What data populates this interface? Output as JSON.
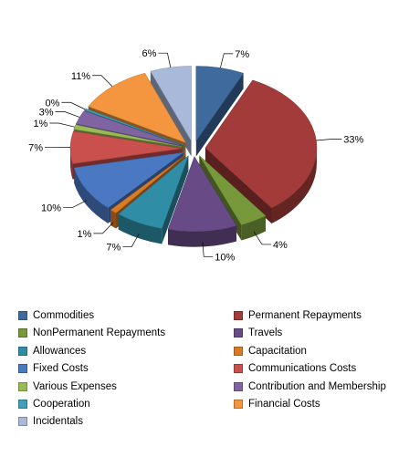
{
  "chart_data": {
    "type": "pie",
    "title": "",
    "legend_position": "bottom",
    "exploded": true,
    "three_d": true,
    "slices": [
      {
        "label": "Commodities",
        "value": 7,
        "value_label": "7%",
        "color": "#3e6a9e"
      },
      {
        "label": "Permanent Repayments",
        "value": 33,
        "value_label": "33%",
        "color": "#a23b39"
      },
      {
        "label": "NonPermanent Repayments",
        "value": 4,
        "value_label": "4%",
        "color": "#78993b"
      },
      {
        "label": "Travels",
        "value": 10,
        "value_label": "10%",
        "color": "#674a86"
      },
      {
        "label": "Allowances",
        "value": 7,
        "value_label": "7%",
        "color": "#2f8ea6"
      },
      {
        "label": "Capacitation",
        "value": 1,
        "value_label": "1%",
        "color": "#d97a25"
      },
      {
        "label": "Fixed Costs",
        "value": 10,
        "value_label": "10%",
        "color": "#4a78c2"
      },
      {
        "label": "Communications Costs",
        "value": 7,
        "value_label": "7%",
        "color": "#c9504d"
      },
      {
        "label": "Various Expenses",
        "value": 1,
        "value_label": "1%",
        "color": "#99bb55"
      },
      {
        "label": "Contribution and Membership",
        "value": 3,
        "value_label": "3%",
        "color": "#8064a2"
      },
      {
        "label": "Cooperation",
        "value": 0,
        "value_label": "0%",
        "color": "#3fa1b9"
      },
      {
        "label": "Financial Costs",
        "value": 11,
        "value_label": "11%",
        "color": "#f3963f"
      },
      {
        "label": "Incidentals",
        "value": 6,
        "value_label": "6%",
        "color": "#a9b9d9"
      }
    ]
  }
}
